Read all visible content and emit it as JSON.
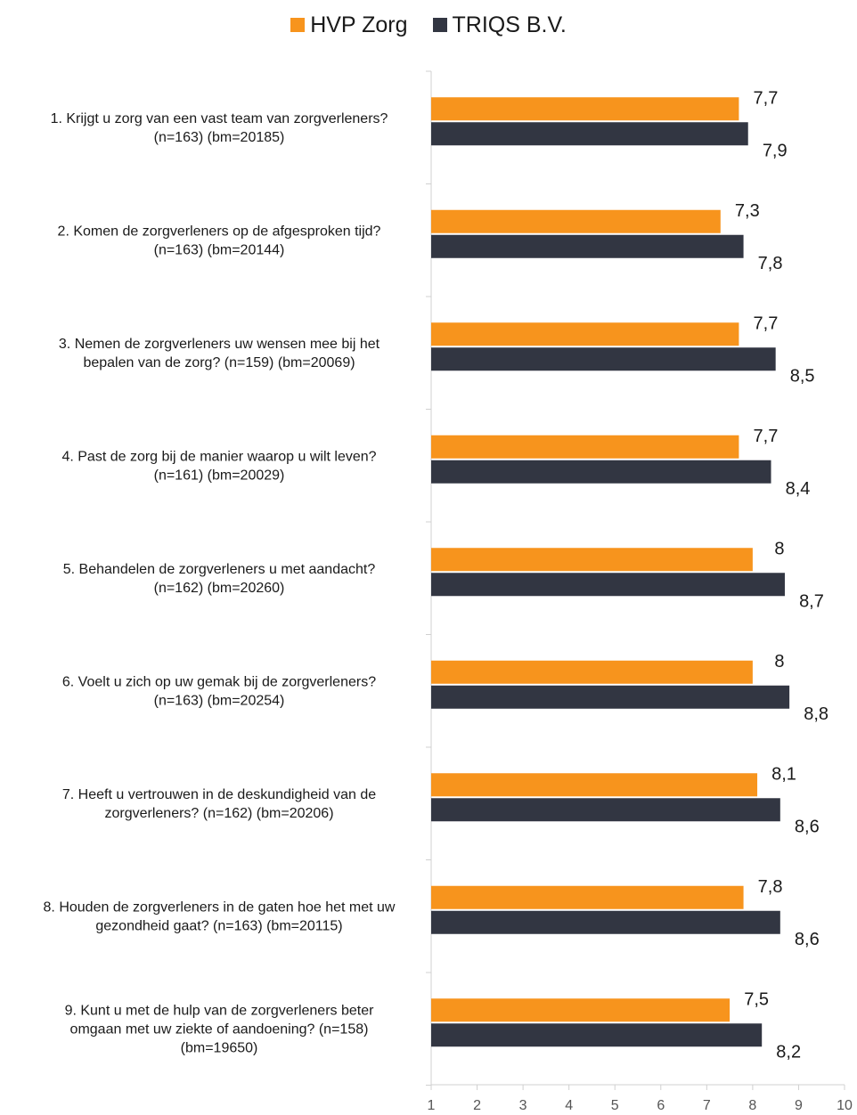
{
  "colors": {
    "series_a": "#F7941D",
    "series_b": "#323642",
    "axis": "#d0d0d0"
  },
  "chart_data": {
    "type": "bar",
    "orientation": "horizontal",
    "categories": [
      [
        "1. Krijgt u zorg van een vast team van zorgverleners?",
        "(n=163) (bm=20185)"
      ],
      [
        "2. Komen de zorgverleners op de afgesproken tijd?",
        "(n=163) (bm=20144)"
      ],
      [
        "3. Nemen de zorgverleners uw wensen mee bij het",
        "bepalen van de zorg? (n=159) (bm=20069)"
      ],
      [
        "4. Past de zorg bij de manier waarop u wilt leven?",
        "(n=161) (bm=20029)"
      ],
      [
        "5. Behandelen de zorgverleners u met aandacht?",
        "(n=162) (bm=20260)"
      ],
      [
        "6. Voelt u zich op uw gemak bij de zorgverleners?",
        "(n=163) (bm=20254)"
      ],
      [
        "7. Heeft u vertrouwen in de deskundigheid van de",
        "zorgverleners? (n=162) (bm=20206)"
      ],
      [
        "8. Houden de zorgverleners in de gaten hoe het met uw",
        "gezondheid gaat? (n=163) (bm=20115)"
      ],
      [
        "9. Kunt u met de hulp van de zorgverleners beter",
        "omgaan met uw ziekte of aandoening? (n=158)",
        "(bm=19650)"
      ]
    ],
    "series": [
      {
        "name": "HVP Zorg",
        "values": [
          7.7,
          7.3,
          7.7,
          7.7,
          8,
          8,
          8.1,
          7.8,
          7.5
        ],
        "labels": [
          "7,7",
          "7,3",
          "7,7",
          "7,7",
          "8",
          "8",
          "8,1",
          "7,8",
          "7,5"
        ]
      },
      {
        "name": "TRIQS B.V.",
        "values": [
          7.9,
          7.8,
          8.5,
          8.4,
          8.7,
          8.8,
          8.6,
          8.6,
          8.2
        ],
        "labels": [
          "7,9",
          "7,8",
          "8,5",
          "8,4",
          "8,7",
          "8,8",
          "8,6",
          "8,6",
          "8,2"
        ]
      }
    ],
    "xlim": [
      1,
      10
    ],
    "xticks": [
      "1",
      "2",
      "3",
      "4",
      "5",
      "6",
      "7",
      "8",
      "9",
      "10"
    ],
    "legend": "top-center",
    "grid": false
  }
}
